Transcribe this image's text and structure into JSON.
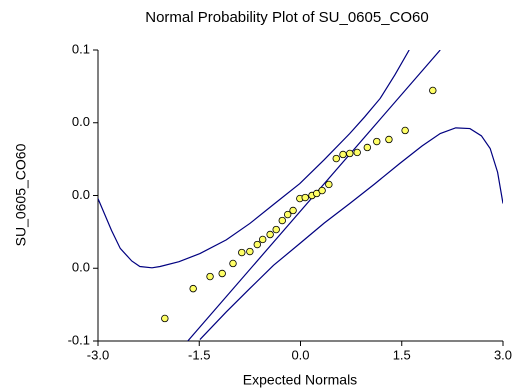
{
  "chart_data": {
    "type": "scatter",
    "title": "Normal Probability Plot of SU_0605_CO60",
    "x_label": "Expected Normals",
    "y_label": "SU_0605_CO60",
    "xlim": [
      -3,
      3
    ],
    "ylim": [
      -0.1,
      0.1
    ],
    "xticks": [
      {
        "value": -3,
        "label": "-3.0"
      },
      -1.5,
      {
        "value": 0,
        "label": "0.0"
      },
      1.5,
      {
        "value": 3,
        "label": "3.0"
      }
    ],
    "yticks": [
      -0.1,
      {
        "value": -0.05,
        "label": "0.0"
      },
      {
        "value": 0,
        "label": "0.0"
      },
      {
        "value": 0.05,
        "label": "0.0"
      },
      0.1
    ],
    "color": "#ffff66",
    "x": [
      -2.01,
      -1.59,
      -1.34,
      -1.16,
      -1.0,
      -0.87,
      -0.75,
      -0.64,
      -0.56,
      -0.45,
      -0.36,
      -0.27,
      -0.19,
      -0.11,
      -0.01,
      0.07,
      0.17,
      0.24,
      0.32,
      0.42,
      0.53,
      0.63,
      0.73,
      0.84,
      0.99,
      1.13,
      1.31,
      1.55,
      1.96
    ],
    "values": [
      -0.0845,
      -0.064,
      -0.0557,
      -0.0536,
      -0.0467,
      -0.0392,
      -0.0385,
      -0.0337,
      -0.0302,
      -0.0268,
      -0.0234,
      -0.0172,
      -0.0131,
      -0.0103,
      -0.0021,
      -0.0014,
      0,
      0.0014,
      0.0034,
      0.0076,
      0.0254,
      0.0282,
      0.0289,
      0.0296,
      0.033,
      0.0371,
      0.0385,
      0.0447,
      0.0722
    ],
    "lines": [
      {
        "color": "#000080",
        "x": [
          -1.67,
          2.07
        ],
        "values": [
          -0.1,
          0.1
        ]
      },
      {
        "color": "#000080",
        "x": [
          -3,
          -2.8,
          -2.67,
          -2.5,
          -2.38,
          -2.2,
          -2.08,
          -1.8,
          -1.49,
          -1.1,
          -0.75,
          -0.4,
          -0.01,
          0.35,
          0.73,
          0.95,
          1.18,
          1.4,
          1.61
        ],
        "values": [
          -0.0021,
          -0.024,
          -0.0364,
          -0.045,
          -0.0488,
          -0.0497,
          -0.0488,
          -0.0455,
          -0.0399,
          -0.0305,
          -0.0192,
          -0.0062,
          0.0082,
          0.0245,
          0.0426,
          0.054,
          0.0667,
          0.083,
          0.1
        ]
      },
      {
        "color": "#000080",
        "x": [
          -1.49,
          -1.1,
          -0.75,
          -0.4,
          -0.01,
          0.35,
          0.73,
          1.1,
          1.47,
          1.8,
          2.07,
          2.3,
          2.51,
          2.68,
          2.81,
          2.92,
          3.0
        ],
        "values": [
          -0.099,
          -0.08,
          -0.0639,
          -0.048,
          -0.033,
          -0.019,
          -0.0055,
          0.008,
          0.022,
          0.034,
          0.0426,
          0.0465,
          0.046,
          0.041,
          0.0323,
          0.016,
          -0.0055
        ]
      }
    ]
  }
}
